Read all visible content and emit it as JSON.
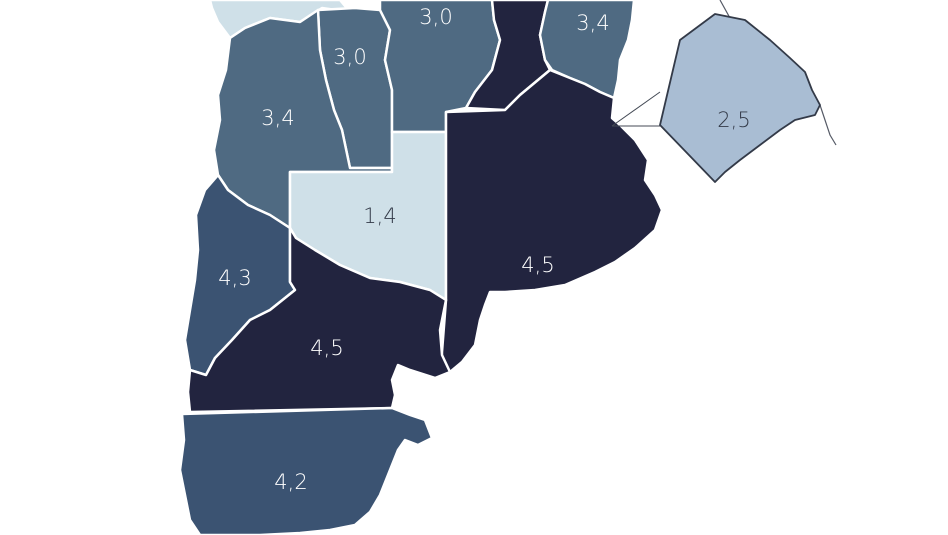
{
  "map": {
    "colors": {
      "lightest": "#cfe0e8",
      "light": "#a9bdd3",
      "medium": "#4f6a82",
      "medium_dark": "#3b5372",
      "dark": "#22243f"
    },
    "regions": [
      {
        "id": "r-top-left",
        "color": "#cfe0e8",
        "value": ""
      },
      {
        "id": "r-top-mid",
        "color": "#4f6a82",
        "value": "3,0"
      },
      {
        "id": "r-top-narrow",
        "color": "#4f6a82",
        "value": "3,0"
      },
      {
        "id": "r-top-right",
        "color": "#4f6a82",
        "value": "3,4"
      },
      {
        "id": "r-northwest",
        "color": "#4f6a82",
        "value": "3,4"
      },
      {
        "id": "r-center",
        "color": "#cfe0e8",
        "value": "1,4"
      },
      {
        "id": "r-east",
        "color": "#22243f",
        "value": "4,5"
      },
      {
        "id": "r-west",
        "color": "#3b5372",
        "value": "4,3"
      },
      {
        "id": "r-south-mid",
        "color": "#22243f",
        "value": "4,5"
      },
      {
        "id": "r-south",
        "color": "#3b5372",
        "value": "4,2"
      },
      {
        "id": "r-inset",
        "color": "#a9bdd3",
        "value": "2,5"
      }
    ]
  }
}
